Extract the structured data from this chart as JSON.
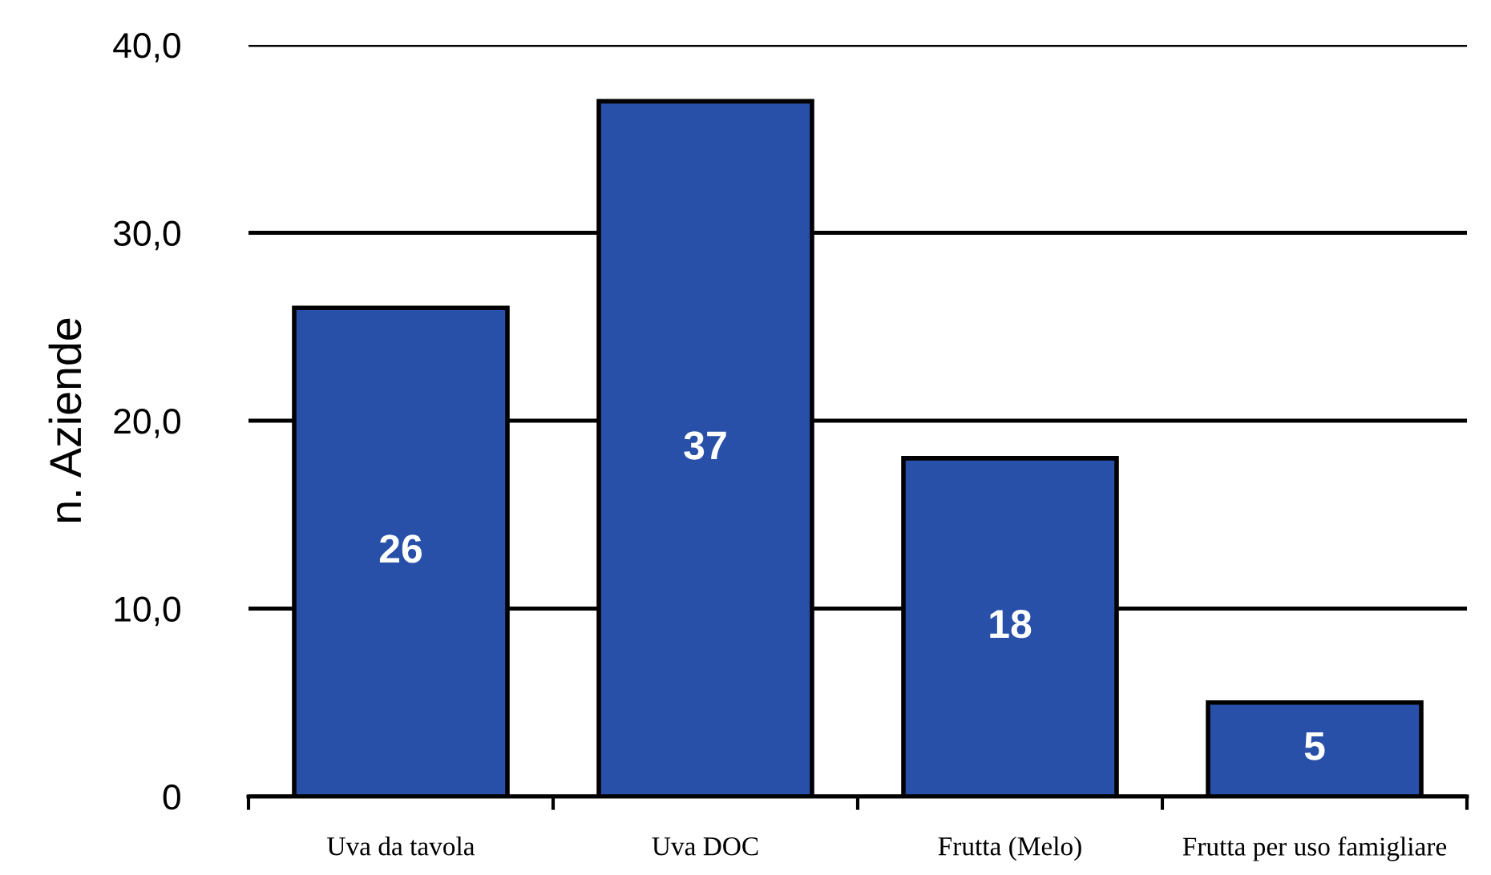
{
  "chart_data": {
    "type": "bar",
    "ylabel": "n. Aziende",
    "categories": [
      "Uva da tavola",
      "Uva DOC",
      "Frutta (Melo)",
      "Frutta per uso famigliare"
    ],
    "values": [
      26,
      37,
      18,
      5
    ],
    "color": "#2850a8",
    "ylim": [
      0,
      40
    ],
    "yticks": [
      0,
      {
        "value": 10,
        "label": "10,0"
      },
      {
        "value": 20,
        "label": "20,0"
      },
      {
        "value": 30,
        "label": "30,0"
      },
      {
        "value": 40,
        "label": "40,0"
      }
    ],
    "grid": "y",
    "data_labels": true
  }
}
